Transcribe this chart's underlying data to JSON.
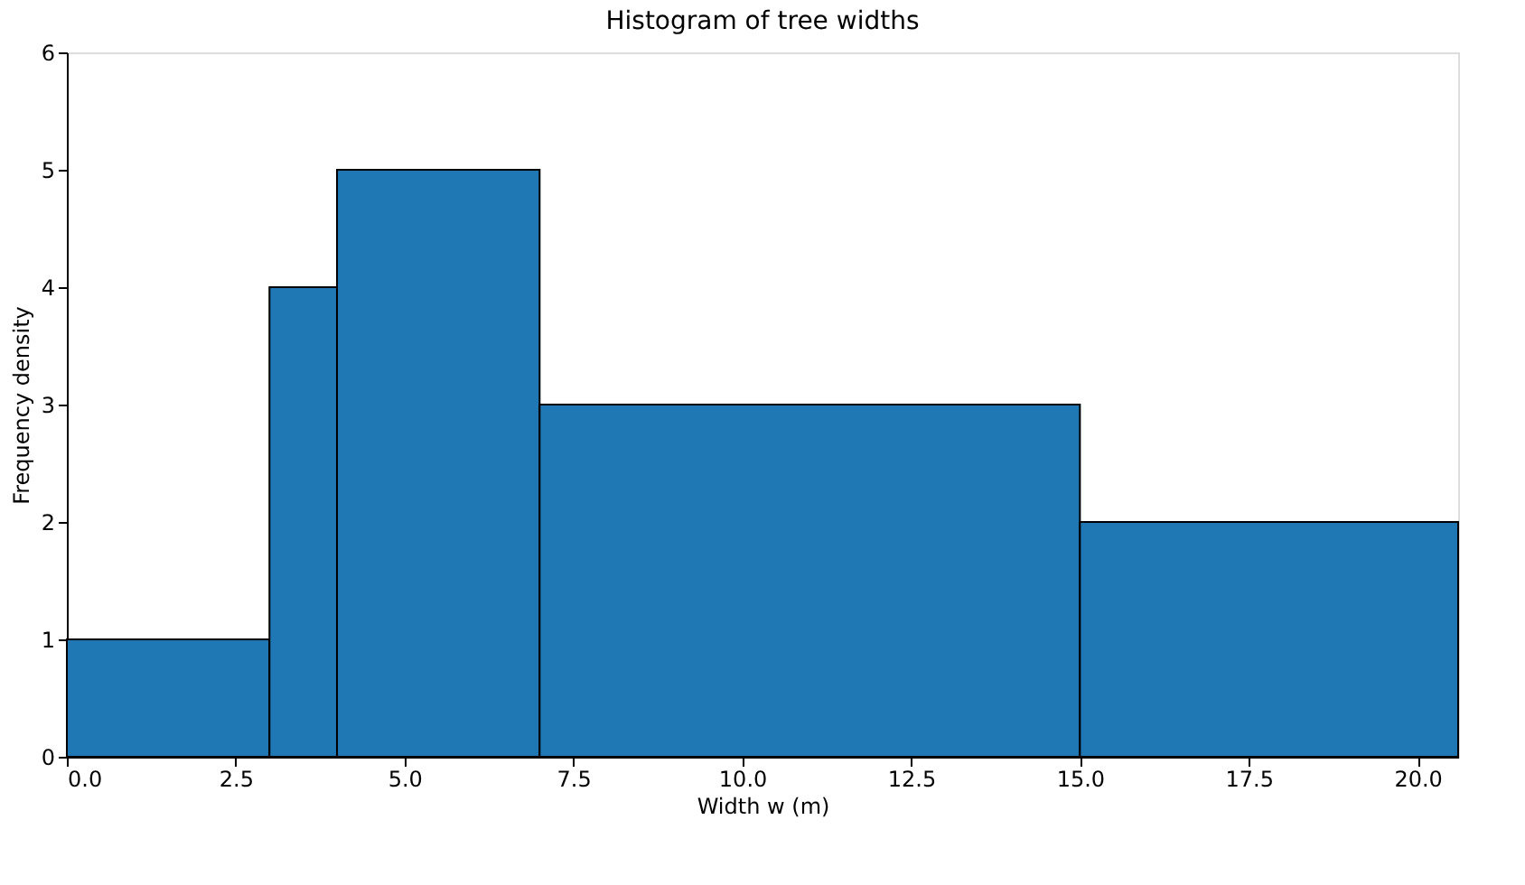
{
  "chart_data": {
    "type": "histogram",
    "title": "Histogram of tree widths",
    "xlabel": "Width w (m)",
    "ylabel": "Frequency density",
    "bins": [
      0,
      3,
      4,
      7,
      15,
      20.6
    ],
    "values": [
      1,
      4,
      5,
      3,
      2
    ],
    "color": "#1f77b4",
    "xlim": [
      0,
      20.6
    ],
    "ylim": [
      0,
      6
    ],
    "xticks": [
      {
        "value": 0,
        "label": "0.0"
      },
      2.5,
      {
        "value": 5,
        "label": "5.0"
      },
      7.5,
      {
        "value": 10,
        "label": "10.0"
      },
      12.5,
      {
        "value": 15,
        "label": "15.0"
      },
      17.5,
      {
        "value": 20,
        "label": "20.0"
      }
    ],
    "yticks": [
      0,
      1,
      2,
      3,
      4,
      5,
      6
    ],
    "grid": false
  }
}
